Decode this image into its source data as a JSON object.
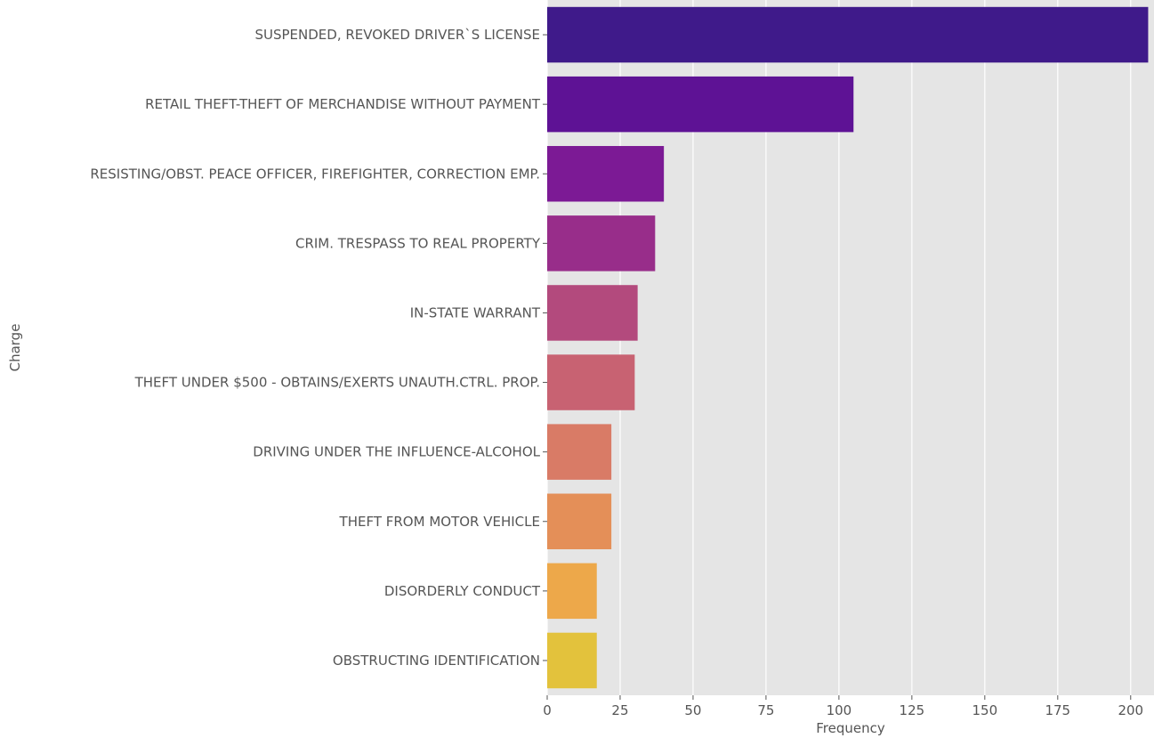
{
  "chart_data": {
    "type": "bar",
    "orientation": "horizontal",
    "title": "",
    "xlabel": "Frequency",
    "ylabel": "Charge",
    "xlim": [
      0,
      208
    ],
    "xticks": [
      0,
      25,
      50,
      75,
      100,
      125,
      150,
      175,
      200
    ],
    "grid": true,
    "legend": "none",
    "categories": [
      "SUSPENDED, REVOKED DRIVER`S LICENSE",
      "RETAIL THEFT-THEFT OF MERCHANDISE WITHOUT PAYMENT",
      "RESISTING/OBST. PEACE OFFICER, FIREFIGHTER, CORRECTION EMP.",
      "CRIM. TRESPASS TO REAL PROPERTY",
      "IN-STATE WARRANT",
      "THEFT UNDER $500 - OBTAINS/EXERTS UNAUTH.CTRL. PROP.",
      "DRIVING UNDER THE INFLUENCE-ALCOHOL",
      "THEFT FROM MOTOR VEHICLE",
      "DISORDERLY CONDUCT",
      "OBSTRUCTING IDENTIFICATION"
    ],
    "values": [
      206,
      105,
      40,
      37,
      31,
      30,
      22,
      22,
      17,
      17
    ],
    "colors": [
      "#3f1a8a",
      "#5e1295",
      "#7c1a95",
      "#982d8a",
      "#b34a7d",
      "#c86272",
      "#d97b66",
      "#e48f58",
      "#eda84a",
      "#e3c23c"
    ],
    "background": "#e5e5e5",
    "gridline_color": "#ffffff"
  }
}
